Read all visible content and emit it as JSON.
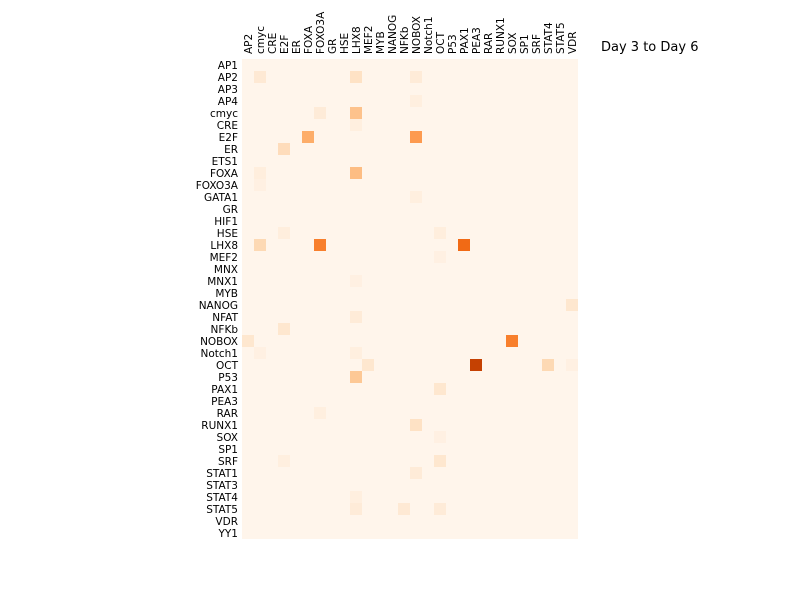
{
  "chart_data": {
    "type": "heatmap",
    "title": "Day 3 to Day 6",
    "x_categories": [
      "AP2",
      "cmyc",
      "CRE",
      "E2F",
      "ER",
      "FOXA",
      "FOXO3A",
      "GR",
      "HSE",
      "LHX8",
      "MEF2",
      "MYB",
      "NANOG",
      "NFKb",
      "NOBOX",
      "Notch1",
      "OCT",
      "P53",
      "PAX1",
      "PEA3",
      "RAR",
      "RUNX1",
      "SOX",
      "SP1",
      "SRF",
      "STAT4",
      "STAT5",
      "VDR"
    ],
    "y_categories": [
      "AP1",
      "AP2",
      "AP3",
      "AP4",
      "cmyc",
      "CRE",
      "E2F",
      "ER",
      "ETS1",
      "FOXA",
      "FOXO3A",
      "GATA1",
      "GR",
      "HIF1",
      "HSE",
      "LHX8",
      "MEF2",
      "MNX",
      "MNX1",
      "MYB",
      "NANOG",
      "NFAT",
      "NFKb",
      "NOBOX",
      "Notch1",
      "OCT",
      "P53",
      "PAX1",
      "PEA3",
      "RAR",
      "RUNX1",
      "SOX",
      "SP1",
      "SRF",
      "STAT1",
      "STAT3",
      "STAT4",
      "STAT5",
      "VDR",
      "YY1"
    ],
    "value_range": [
      0,
      1
    ],
    "colormap": "Oranges",
    "grid": false,
    "legend": "none",
    "cells": [
      {
        "row": "AP2",
        "col": "cmyc",
        "value": 0.1
      },
      {
        "row": "AP2",
        "col": "LHX8",
        "value": 0.15
      },
      {
        "row": "AP2",
        "col": "NOBOX",
        "value": 0.08
      },
      {
        "row": "AP4",
        "col": "NOBOX",
        "value": 0.05
      },
      {
        "row": "cmyc",
        "col": "FOXO3A",
        "value": 0.08
      },
      {
        "row": "cmyc",
        "col": "LHX8",
        "value": 0.3
      },
      {
        "row": "CRE",
        "col": "LHX8",
        "value": 0.05
      },
      {
        "row": "E2F",
        "col": "FOXA",
        "value": 0.38
      },
      {
        "row": "E2F",
        "col": "NOBOX",
        "value": 0.45
      },
      {
        "row": "ER",
        "col": "E2F",
        "value": 0.18
      },
      {
        "row": "FOXA",
        "col": "cmyc",
        "value": 0.06
      },
      {
        "row": "FOXA",
        "col": "LHX8",
        "value": 0.32
      },
      {
        "row": "FOXO3A",
        "col": "cmyc",
        "value": 0.04
      },
      {
        "row": "GATA1",
        "col": "NOBOX",
        "value": 0.05
      },
      {
        "row": "HSE",
        "col": "E2F",
        "value": 0.06
      },
      {
        "row": "HSE",
        "col": "OCT",
        "value": 0.06
      },
      {
        "row": "LHX8",
        "col": "cmyc",
        "value": 0.2
      },
      {
        "row": "LHX8",
        "col": "FOXO3A",
        "value": 0.55
      },
      {
        "row": "LHX8",
        "col": "PAX1",
        "value": 0.62
      },
      {
        "row": "MEF2",
        "col": "OCT",
        "value": 0.04
      },
      {
        "row": "MNX1",
        "col": "LHX8",
        "value": 0.04
      },
      {
        "row": "NANOG",
        "col": "VDR",
        "value": 0.12
      },
      {
        "row": "NFAT",
        "col": "LHX8",
        "value": 0.08
      },
      {
        "row": "NFKb",
        "col": "E2F",
        "value": 0.12
      },
      {
        "row": "NOBOX",
        "col": "AP2",
        "value": 0.12
      },
      {
        "row": "NOBOX",
        "col": "SOX",
        "value": 0.55
      },
      {
        "row": "Notch1",
        "col": "cmyc",
        "value": 0.04
      },
      {
        "row": "Notch1",
        "col": "LHX8",
        "value": 0.05
      },
      {
        "row": "OCT",
        "col": "MEF2",
        "value": 0.12
      },
      {
        "row": "OCT",
        "col": "PEA3",
        "value": 0.8
      },
      {
        "row": "OCT",
        "col": "STAT4",
        "value": 0.2
      },
      {
        "row": "OCT",
        "col": "VDR",
        "value": 0.04
      },
      {
        "row": "P53",
        "col": "LHX8",
        "value": 0.28
      },
      {
        "row": "PAX1",
        "col": "OCT",
        "value": 0.12
      },
      {
        "row": "RAR",
        "col": "FOXO3A",
        "value": 0.05
      },
      {
        "row": "RUNX1",
        "col": "NOBOX",
        "value": 0.15
      },
      {
        "row": "SOX",
        "col": "OCT",
        "value": 0.04
      },
      {
        "row": "SRF",
        "col": "E2F",
        "value": 0.05
      },
      {
        "row": "SRF",
        "col": "OCT",
        "value": 0.12
      },
      {
        "row": "STAT1",
        "col": "NOBOX",
        "value": 0.08
      },
      {
        "row": "STAT4",
        "col": "LHX8",
        "value": 0.05
      },
      {
        "row": "STAT5",
        "col": "LHX8",
        "value": 0.08
      },
      {
        "row": "STAT5",
        "col": "NFKb",
        "value": 0.1
      },
      {
        "row": "STAT5",
        "col": "OCT",
        "value": 0.08
      }
    ]
  }
}
